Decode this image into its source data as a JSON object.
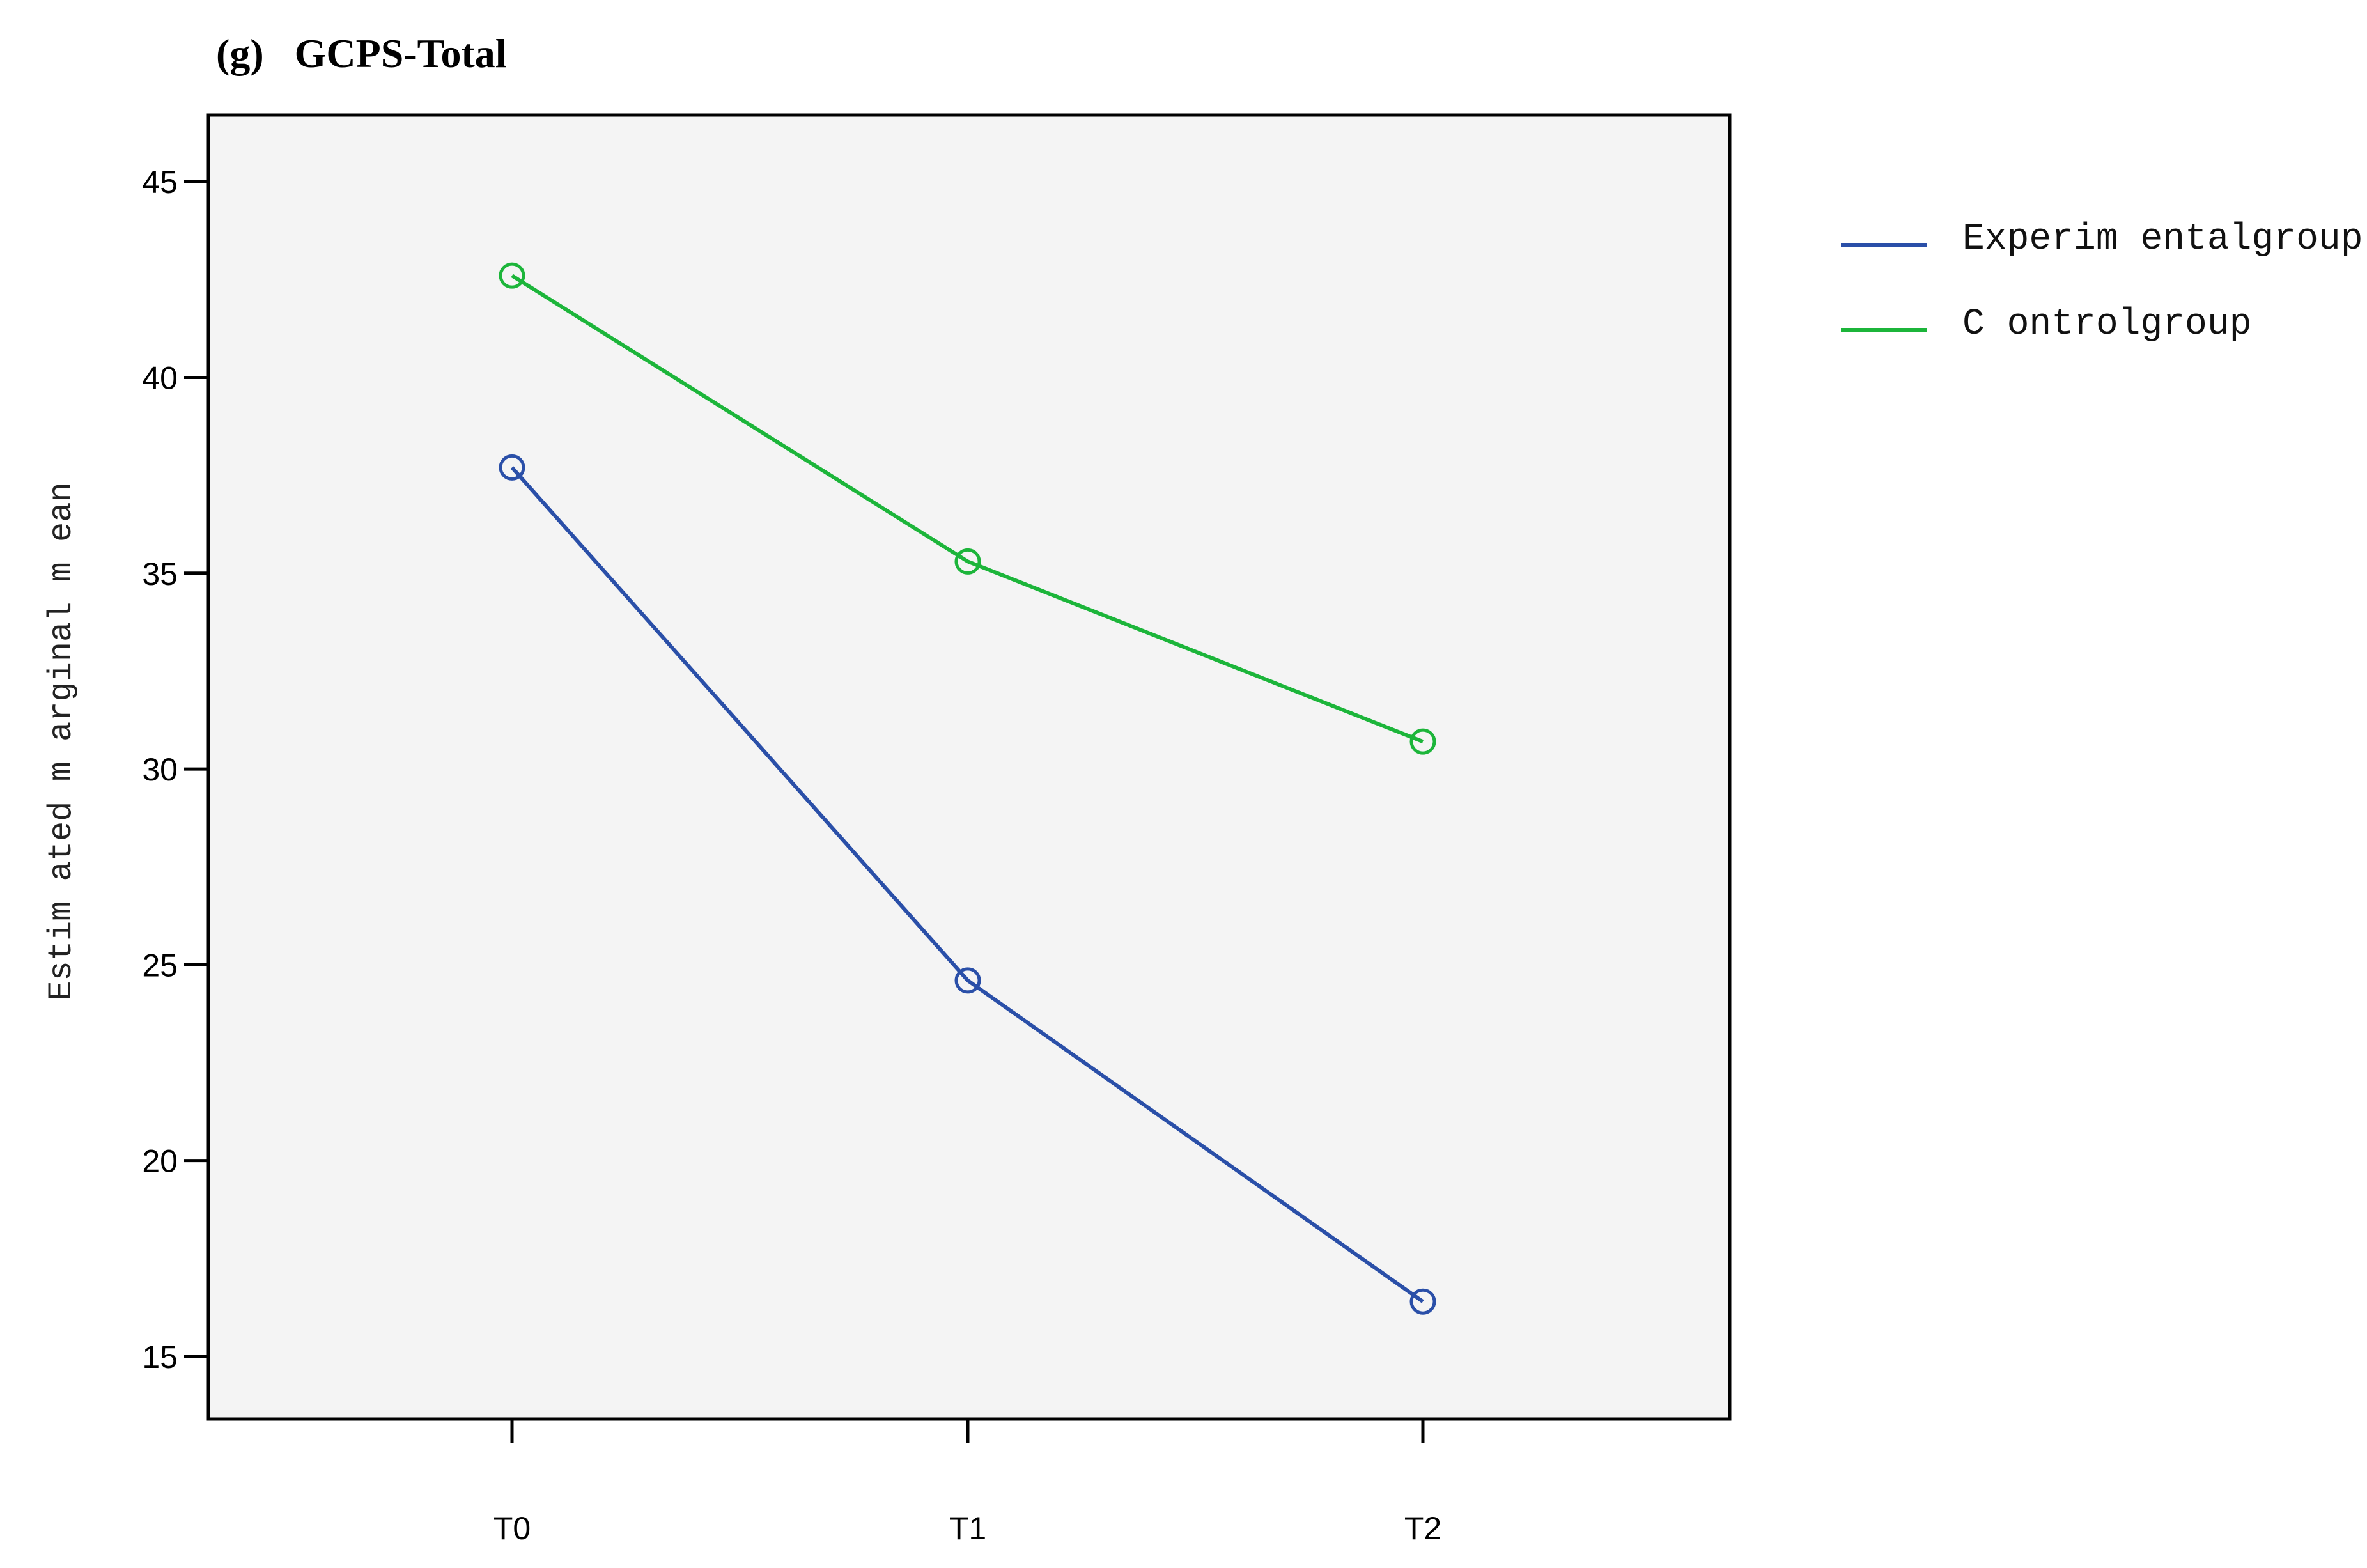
{
  "chart_data": {
    "type": "line",
    "title": "(g)   GCPS-Total",
    "ylabel": "Estim ated m arginal m ean",
    "xlabel": "",
    "categories": [
      "T0",
      "T1",
      "T2"
    ],
    "yticks": [
      "15",
      "20",
      "25",
      "30",
      "35",
      "40",
      "45"
    ],
    "ylim": [
      13.4,
      46.7
    ],
    "grid": false,
    "legend_position": "right",
    "series": [
      {
        "name": "Experim entalgroup",
        "color": "#2a4fa8",
        "values": [
          37.7,
          24.6,
          16.4
        ]
      },
      {
        "name": "C ontrolgroup",
        "color": "#1cb53a",
        "values": [
          42.6,
          35.3,
          30.7
        ]
      }
    ]
  }
}
